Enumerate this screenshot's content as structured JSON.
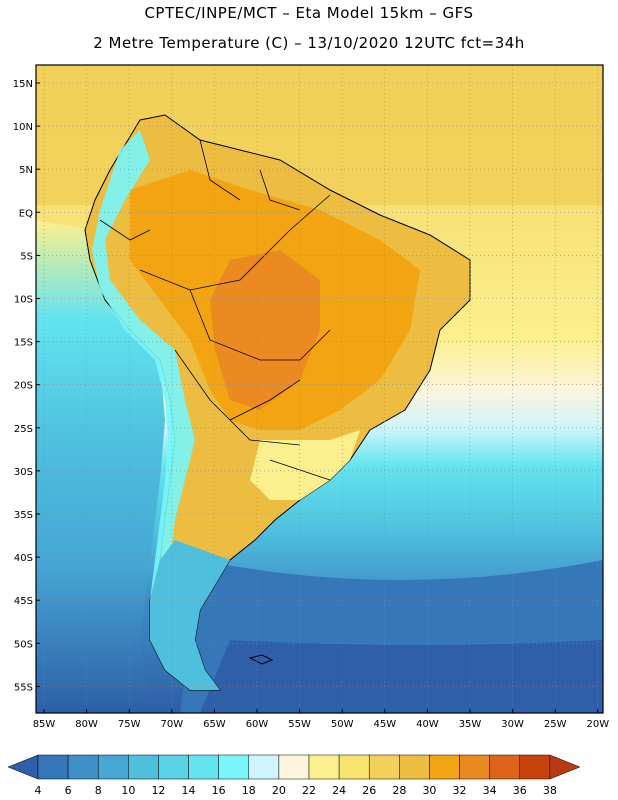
{
  "title_line1": "CPTEC/INPE/MCT –  Eta Model 15km – GFS",
  "title_line2": "2 Metre Temperature (C) – 13/10/2020 12UTC fct=34h",
  "lat_labels": [
    "15N",
    "10N",
    "5N",
    "EQ",
    "5S",
    "10S",
    "15S",
    "20S",
    "25S",
    "30S",
    "35S",
    "40S",
    "45S",
    "50S",
    "55S"
  ],
  "lon_labels": [
    "85W",
    "80W",
    "75W",
    "70W",
    "65W",
    "60W",
    "55W",
    "50W",
    "45W",
    "40W",
    "35W",
    "30W",
    "25W",
    "20W"
  ],
  "colorbar": {
    "labels": [
      "4",
      "6",
      "8",
      "10",
      "12",
      "14",
      "16",
      "18",
      "20",
      "22",
      "24",
      "26",
      "28",
      "30",
      "32",
      "34",
      "36",
      "38"
    ],
    "colors": [
      "#2e5fa8",
      "#3677b9",
      "#3f8fc8",
      "#46a6d4",
      "#4ec0de",
      "#59d3e6",
      "#63e4ef",
      "#78f6fa",
      "#cef5fb",
      "#fdf5dc",
      "#fcf08e",
      "#f8e36e",
      "#f2d05a",
      "#ecbd40",
      "#f2a412",
      "#ea8a20",
      "#dd6418",
      "#c8420c",
      "#b83a10"
    ]
  },
  "map_colors": {
    "ocean_south": "#2e5fa8",
    "ocean_mid": "#46a6d4",
    "ocean_cool": "#59d3e6",
    "ocean_warm": "#f2d05a",
    "land_hot": "#ecbd40",
    "land_hotter": "#f2a412",
    "land_hottest": "#ea8a20",
    "andes": "#78f6fa",
    "patagonia": "#4ec0de",
    "coast": "#000000"
  }
}
